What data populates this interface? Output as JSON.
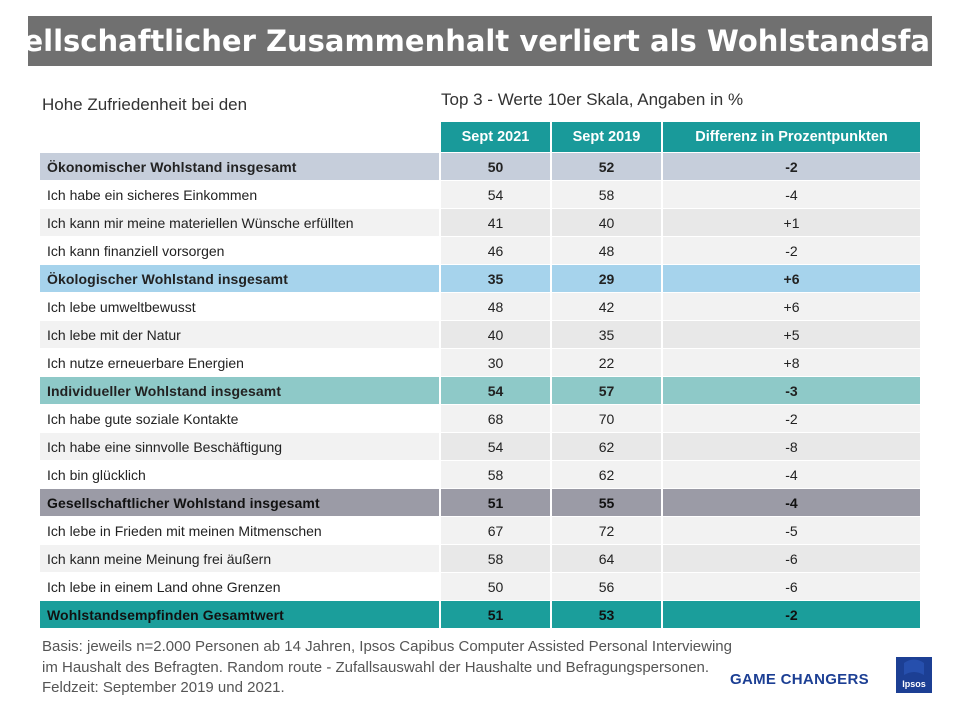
{
  "title": "Gesellschaftlicher Zusammenhalt verliert als Wohlstandsfaktor",
  "subtitle_left": "Hohe Zufriedenheit  bei den Dimensionen / Faktoren….",
  "subtitle_right": "Top 3 - Werte 10er Skala, Angaben in %",
  "table": {
    "columns": [
      "Sept 2021",
      "Sept 2019",
      "Differenz in Prozentpunkten"
    ],
    "rows": [
      {
        "label": "Ökonomischer Wohlstand  insgesamt",
        "v2021": "50",
        "v2019": "52",
        "diff": "-2",
        "group": true,
        "color": "#c6cedb",
        "labelColor": "#c6cedb"
      },
      {
        "label": "Ich habe ein sicheres Einkommen",
        "v2021": "54",
        "v2019": "58",
        "diff": "-4",
        "group": false
      },
      {
        "label": "Ich kann mir meine materiellen Wünsche erfüllten",
        "v2021": "41",
        "v2019": "40",
        "diff": "+1",
        "group": false
      },
      {
        "label": "Ich kann finanziell vorsorgen",
        "v2021": "46",
        "v2019": "48",
        "diff": "-2",
        "group": false
      },
      {
        "label": "Ökologischer Wohlstand  insgesamt",
        "v2021": "35",
        "v2019": "29",
        "diff": "+6",
        "group": true,
        "color": "#a6d3ec",
        "labelColor": "#a6d3ec"
      },
      {
        "label": "Ich lebe umweltbewusst",
        "v2021": "48",
        "v2019": "42",
        "diff": "+6",
        "group": false
      },
      {
        "label": "Ich lebe mit der Natur",
        "v2021": "40",
        "v2019": "35",
        "diff": "+5",
        "group": false
      },
      {
        "label": "Ich nutze erneuerbare Energien",
        "v2021": "30",
        "v2019": "22",
        "diff": "+8",
        "group": false
      },
      {
        "label": "Individueller  Wohlstand  insgesamt",
        "v2021": "54",
        "v2019": "57",
        "diff": "-3",
        "group": true,
        "color": "#8ec9c8",
        "labelColor": "#8ec9c8"
      },
      {
        "label": "Ich habe gute soziale Kontakte",
        "v2021": "68",
        "v2019": "70",
        "diff": "-2",
        "group": false
      },
      {
        "label": "Ich habe eine sinnvolle Beschäftigung",
        "v2021": "54",
        "v2019": "62",
        "diff": "-8",
        "group": false
      },
      {
        "label": "Ich bin glücklich",
        "v2021": "58",
        "v2019": "62",
        "diff": "-4",
        "group": false
      },
      {
        "label": "Gesellschaftlicher  Wohlstand  insgesamt",
        "v2021": "51",
        "v2019": "55",
        "diff": "-4",
        "group": true,
        "color": "#9b9ba6",
        "labelColor": "#9b9ba6"
      },
      {
        "label": "Ich lebe in Frieden mit meinen Mitmenschen",
        "v2021": "67",
        "v2019": "72",
        "diff": "-5",
        "group": false
      },
      {
        "label": "Ich kann meine Meinung frei äußern",
        "v2021": "58",
        "v2019": "64",
        "diff": "-6",
        "group": false
      },
      {
        "label": "Ich lebe in einem Land ohne Grenzen",
        "v2021": "50",
        "v2019": "56",
        "diff": "-6",
        "group": false
      },
      {
        "label": "Wohlstandsempfinden  Gesamtwert",
        "v2021": "51",
        "v2019": "53",
        "diff": "-2",
        "group": true,
        "color": "#1b9e9b",
        "labelColor": "#1b9e9b"
      }
    ]
  },
  "footnote": "Basis: jeweils n=2.000 Personen ab 14 Jahren,  Ipsos Capibus Computer Assisted Personal Interviewing im Haushalt des Befragten. Random route - Zufallsauswahl der Haushalte und Befragungspersonen. Feldzeit: September 2019 und 2021.",
  "brand_tagline": "GAME CHANGERS",
  "logo_text": "Ipsos",
  "colors": {
    "header": "#199a9a",
    "title_bar": "#707070",
    "brand": "#1c3f94"
  }
}
